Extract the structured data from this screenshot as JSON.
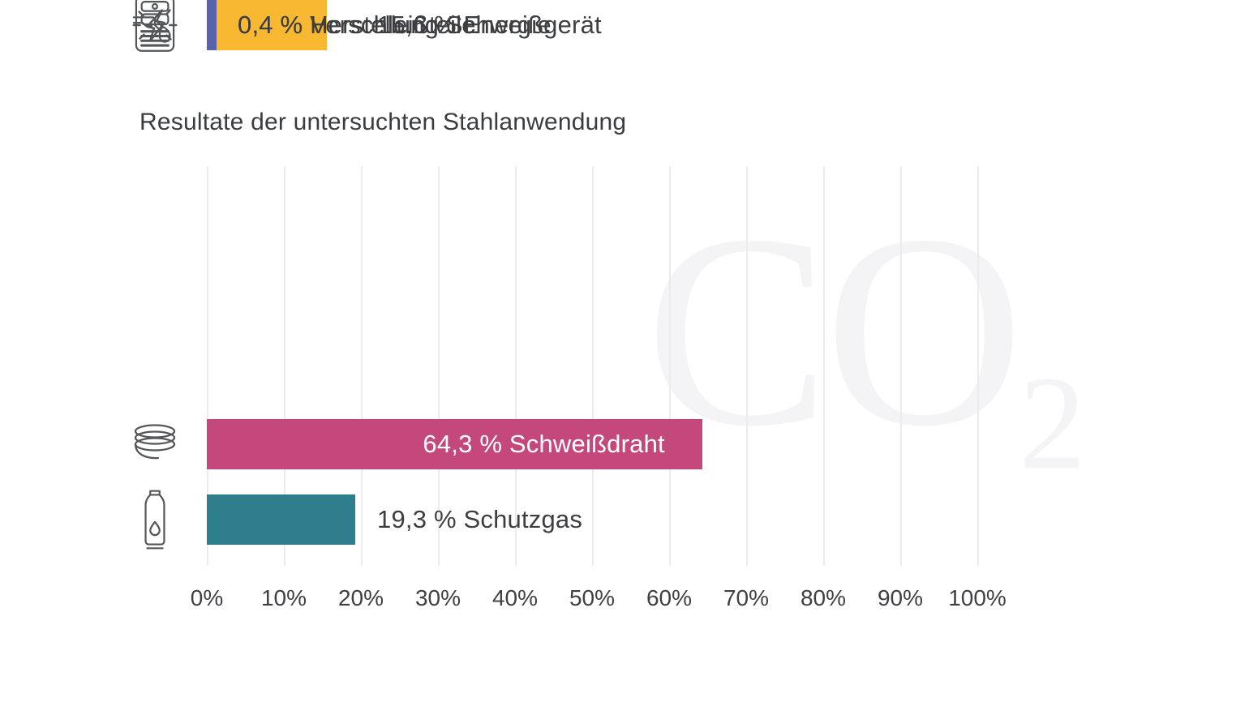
{
  "title": "Resultate der untersuchten Stahlanwendung",
  "watermark": {
    "text": "CO",
    "subscript": "2"
  },
  "colors": {
    "background": "#ffffff",
    "text": "#3d3e42",
    "gridline": "#ececef",
    "watermark": "#f4f3f6",
    "icon_stroke": "#55565a"
  },
  "chart_data": {
    "type": "bar",
    "orientation": "horizontal",
    "title": "Resultate der untersuchten Stahlanwendung",
    "xlabel": "",
    "ylabel": "",
    "xlim": [
      0,
      100
    ],
    "grid": "vertical",
    "legend": "none",
    "x_ticks": [
      "0%",
      "10%",
      "20%",
      "30%",
      "40%",
      "50%",
      "60%",
      "70%",
      "80%",
      "90%",
      "100%"
    ],
    "categories": [
      "Schweißdraht",
      "Schutzgas",
      "Energie",
      "Verschleißteile",
      "Herstellung Schweißgerät"
    ],
    "values": [
      64.3,
      19.3,
      15.6,
      0.4,
      0.4
    ],
    "bars": [
      {
        "label": "64,3 % Schweißdraht",
        "value": 64.3,
        "color": "#C4487C",
        "icon": "wire-coil-icon",
        "label_position": "inside-right",
        "label_color": "#ffffff"
      },
      {
        "label": "19,3 % Schutzgas",
        "value": 19.3,
        "color": "#2E7E8D",
        "icon": "gas-cylinder-icon",
        "label_position": "outside",
        "label_offset": 210,
        "label_color": "#3d3e42"
      },
      {
        "label": "15,6 % Energie",
        "value": 15.6,
        "color": "#F8B832",
        "icon": "lightning-icon",
        "label_position": "outside",
        "label_offset": 210,
        "label_color": "#3d3e42"
      },
      {
        "label": "0,4 % Verschleißteile",
        "value": 0.4,
        "color": "#7DBE72",
        "icon": "welding-torch-icon",
        "label_position": "outside",
        "label_offset": 38,
        "label_color": "#3d3e42"
      },
      {
        "label": "0,4 % Herstellung Schweißgerät",
        "value": 0.4,
        "color": "#5A62AE",
        "icon": "welding-machine-icon",
        "label_position": "outside",
        "label_offset": 38,
        "label_color": "#3d3e42"
      }
    ]
  }
}
